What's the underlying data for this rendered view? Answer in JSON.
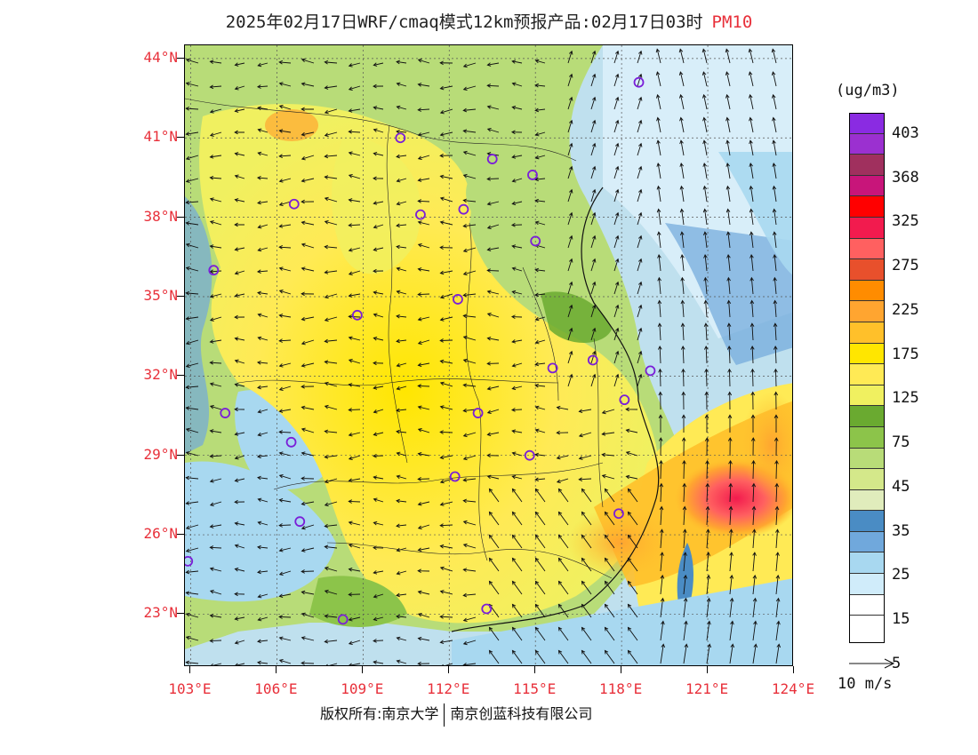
{
  "title": {
    "text": "2025年02月17日WRF/cmaq模式12km预报产品:02月17日03时",
    "species": "PM10"
  },
  "map": {
    "lat_labels": [
      "44°N",
      "41°N",
      "38°N",
      "35°N",
      "32°N",
      "29°N",
      "26°N",
      "23°N"
    ],
    "lon_labels": [
      "103°E",
      "106°E",
      "109°E",
      "112°E",
      "115°E",
      "118°E",
      "121°E",
      "124°E"
    ],
    "stations": [
      {
        "lon": 118.6,
        "lat": 43.1
      },
      {
        "lon": 110.3,
        "lat": 41.0
      },
      {
        "lon": 113.5,
        "lat": 40.2
      },
      {
        "lon": 114.9,
        "lat": 39.6
      },
      {
        "lon": 106.6,
        "lat": 38.5
      },
      {
        "lon": 111.0,
        "lat": 38.1
      },
      {
        "lon": 112.5,
        "lat": 38.3
      },
      {
        "lon": 115.0,
        "lat": 37.1
      },
      {
        "lon": 103.8,
        "lat": 36.0
      },
      {
        "lon": 112.3,
        "lat": 34.9
      },
      {
        "lon": 108.8,
        "lat": 34.3
      },
      {
        "lon": 115.6,
        "lat": 32.3
      },
      {
        "lon": 117.0,
        "lat": 32.6
      },
      {
        "lon": 119.0,
        "lat": 32.2
      },
      {
        "lon": 118.1,
        "lat": 31.1
      },
      {
        "lon": 104.2,
        "lat": 30.6
      },
      {
        "lon": 113.0,
        "lat": 30.6
      },
      {
        "lon": 106.5,
        "lat": 29.5
      },
      {
        "lon": 114.8,
        "lat": 29.0
      },
      {
        "lon": 112.2,
        "lat": 28.2
      },
      {
        "lon": 106.8,
        "lat": 26.5
      },
      {
        "lon": 117.9,
        "lat": 26.8
      },
      {
        "lon": 102.9,
        "lat": 25.0
      },
      {
        "lon": 113.3,
        "lat": 23.2
      },
      {
        "lon": 108.3,
        "lat": 22.8
      }
    ]
  },
  "colorbar": {
    "unit": "(ug/m3)",
    "colors": [
      "#8a2be2",
      "#9b30d0",
      "#a0305e",
      "#c8157a",
      "#ff0000",
      "#f21b4e",
      "#ff6060",
      "#e8502c",
      "#ff8c00",
      "#ffa530",
      "#ffc02a",
      "#ffe600",
      "#ffea55",
      "#f0f060",
      "#6aaa30",
      "#8cc44a",
      "#b8dc78",
      "#d4e88a",
      "#e0ecbc",
      "#4a8cc4",
      "#70a8dc",
      "#a8d8f0",
      "#d0ecfa",
      "#ffffff"
    ],
    "labels": [
      "403",
      "368",
      "325",
      "275",
      "225",
      "175",
      "125",
      "75",
      "45",
      "35",
      "25",
      "15",
      "5"
    ]
  },
  "wind_ref": {
    "label": "10 m/s"
  },
  "footer": {
    "left": "版权所有:南京大学",
    "right": "南京创蓝科技有限公司"
  }
}
